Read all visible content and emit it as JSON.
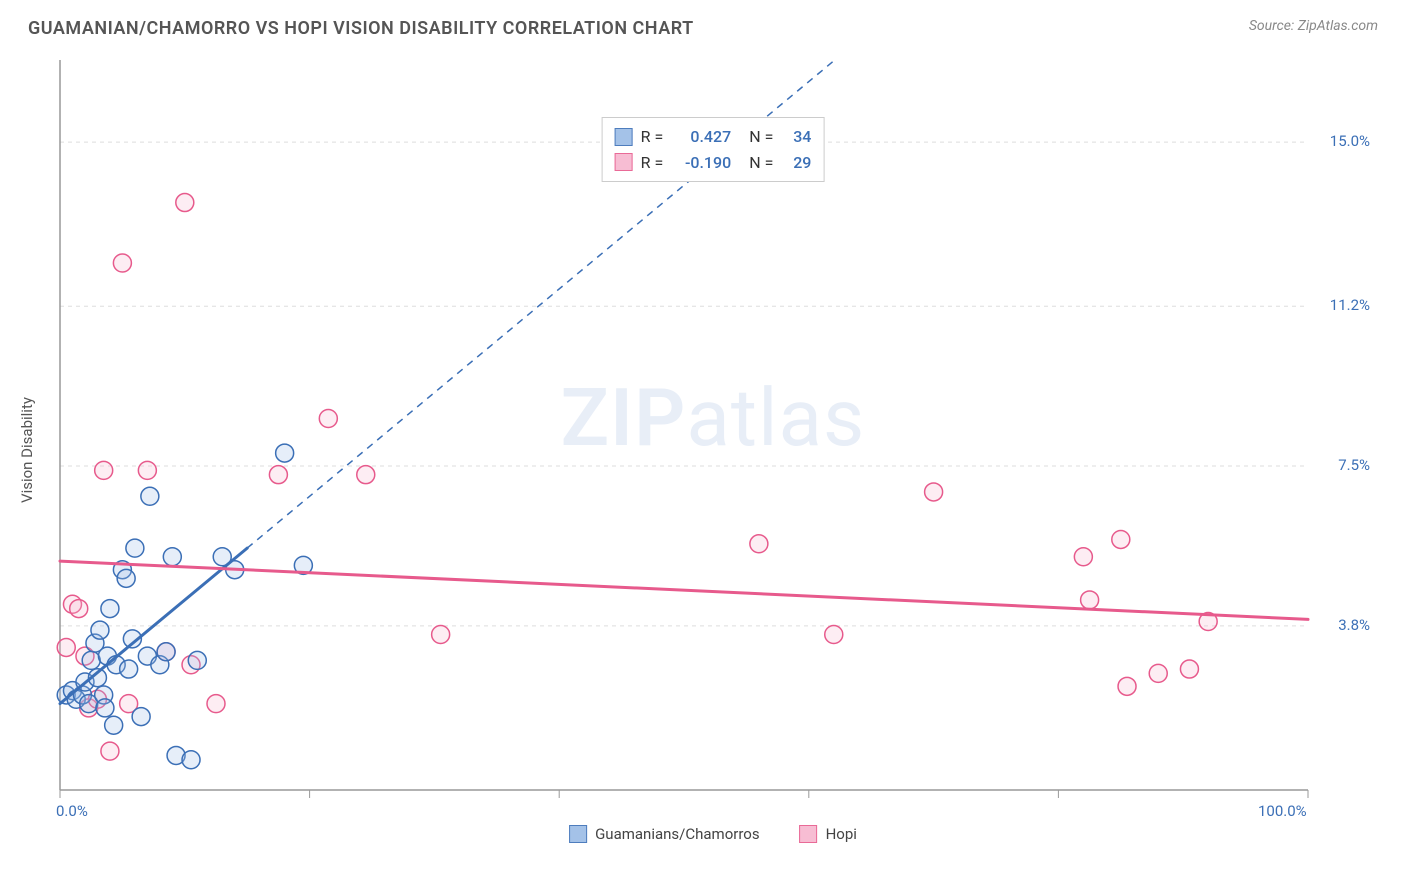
{
  "title": "GUAMANIAN/CHAMORRO VS HOPI VISION DISABILITY CORRELATION CHART",
  "source": "Source: ZipAtlas.com",
  "watermark_zip": "ZIP",
  "watermark_atlas": "atlas",
  "y_axis_label": "Vision Disability",
  "chart": {
    "type": "scatter",
    "background_color": "#ffffff",
    "grid_color": "#dddddd",
    "axis_color": "#999999",
    "xlim": [
      0,
      100
    ],
    "ylim": [
      0,
      16.9
    ],
    "x_ticks": [
      0,
      20,
      40,
      60,
      80,
      100
    ],
    "x_tick_labels_shown": {
      "0": "0.0%",
      "100": "100.0%"
    },
    "y_ticks": [
      3.8,
      7.5,
      11.2,
      15.0
    ],
    "y_tick_labels": [
      "3.8%",
      "7.5%",
      "11.2%",
      "15.0%"
    ],
    "marker_radius": 9,
    "marker_stroke_width": 1.5,
    "marker_fill_opacity": 0.25,
    "series": [
      {
        "name": "Guamanians/Chamorros",
        "color_stroke": "#3b6fb6",
        "color_fill": "#9bbce6",
        "R": "0.427",
        "N": "34",
        "trend": {
          "slope": 0.24,
          "intercept": 2.0,
          "x_solid_max": 15,
          "x_dash_max": 62,
          "solid_width": 3,
          "dash_pattern": "7,6"
        },
        "points": [
          [
            0.5,
            2.2
          ],
          [
            1.0,
            2.3
          ],
          [
            1.3,
            2.1
          ],
          [
            1.8,
            2.2
          ],
          [
            2.0,
            2.5
          ],
          [
            2.3,
            2.0
          ],
          [
            2.5,
            3.0
          ],
          [
            2.8,
            3.4
          ],
          [
            3.0,
            2.6
          ],
          [
            3.2,
            3.7
          ],
          [
            3.5,
            2.2
          ],
          [
            3.8,
            3.1
          ],
          [
            4.0,
            4.2
          ],
          [
            4.3,
            1.5
          ],
          [
            4.5,
            2.9
          ],
          [
            5.0,
            5.1
          ],
          [
            5.3,
            4.9
          ],
          [
            5.5,
            2.8
          ],
          [
            5.8,
            3.5
          ],
          [
            6.0,
            5.6
          ],
          [
            6.5,
            1.7
          ],
          [
            7.0,
            3.1
          ],
          [
            7.2,
            6.8
          ],
          [
            8.0,
            2.9
          ],
          [
            8.5,
            3.2
          ],
          [
            9.0,
            5.4
          ],
          [
            9.3,
            0.8
          ],
          [
            10.5,
            0.7
          ],
          [
            11.0,
            3.0
          ],
          [
            13.0,
            5.4
          ],
          [
            14.0,
            5.1
          ],
          [
            18.0,
            7.8
          ],
          [
            19.5,
            5.2
          ],
          [
            3.6,
            1.9
          ]
        ]
      },
      {
        "name": "Hopi",
        "color_stroke": "#e75a8c",
        "color_fill": "#f7b6cf",
        "R": "-0.190",
        "N": "29",
        "trend": {
          "slope": -0.0135,
          "intercept": 5.3,
          "x_solid_max": 100,
          "x_dash_max": 100,
          "solid_width": 3,
          "dash_pattern": ""
        },
        "points": [
          [
            0.5,
            3.3
          ],
          [
            1.0,
            4.3
          ],
          [
            1.5,
            4.2
          ],
          [
            2.0,
            3.1
          ],
          [
            2.3,
            1.9
          ],
          [
            3.0,
            2.1
          ],
          [
            3.5,
            7.4
          ],
          [
            4.0,
            0.9
          ],
          [
            5.0,
            12.2
          ],
          [
            5.5,
            2.0
          ],
          [
            7.0,
            7.4
          ],
          [
            8.5,
            3.2
          ],
          [
            10.0,
            13.6
          ],
          [
            10.5,
            2.9
          ],
          [
            12.5,
            2.0
          ],
          [
            17.5,
            7.3
          ],
          [
            21.5,
            8.6
          ],
          [
            24.5,
            7.3
          ],
          [
            30.5,
            3.6
          ],
          [
            56.0,
            5.7
          ],
          [
            62.0,
            3.6
          ],
          [
            70.0,
            6.9
          ],
          [
            82.0,
            5.4
          ],
          [
            82.5,
            4.4
          ],
          [
            85.0,
            5.8
          ],
          [
            85.5,
            2.4
          ],
          [
            88.0,
            2.7
          ],
          [
            90.5,
            2.8
          ],
          [
            92.0,
            3.9
          ]
        ]
      }
    ]
  },
  "stats_legend": {
    "R_label": "R =",
    "N_label": "N ="
  }
}
